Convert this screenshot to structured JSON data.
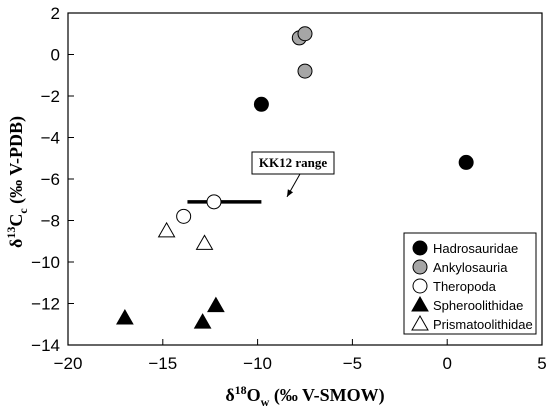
{
  "chart_data": {
    "type": "scatter",
    "xlabel": {
      "prefix": "δ",
      "sup": "18",
      "main": "O",
      "sub": "w",
      "suffix": " (‰ V-SMOW)"
    },
    "ylabel": {
      "prefix": "δ",
      "sup": "13",
      "main": "C",
      "sub": "c",
      "suffix": " (‰ V-PDB)"
    },
    "xlim": [
      -20,
      5
    ],
    "ylim": [
      -14,
      2
    ],
    "xticks": [
      -20,
      -15,
      -10,
      -5,
      0,
      5
    ],
    "yticks": [
      2,
      0,
      -2,
      -4,
      -6,
      -8,
      -10,
      -12,
      -14
    ],
    "xtick_labels": [
      "−20",
      "−15",
      "−10",
      "−5",
      "0",
      "5"
    ],
    "ytick_labels": [
      "2",
      "0",
      "−2",
      "−4",
      "−6",
      "−8",
      "−10",
      "−12",
      "−14"
    ],
    "grid": false,
    "legend_position": "bottom-right",
    "series": [
      {
        "name": "Hadrosauridae",
        "marker": "circle",
        "fill": "#000000",
        "points": [
          {
            "x": -9.8,
            "y": -2.4
          },
          {
            "x": 1.0,
            "y": -5.2
          }
        ]
      },
      {
        "name": "Ankylosauria",
        "marker": "circle",
        "fill": "#a6a6a6",
        "points": [
          {
            "x": -7.8,
            "y": 0.8
          },
          {
            "x": -7.5,
            "y": 1.0
          },
          {
            "x": -7.5,
            "y": -0.8
          }
        ]
      },
      {
        "name": "Theropoda",
        "marker": "circle",
        "fill": "#ffffff",
        "points": [
          {
            "x": -13.9,
            "y": -7.8
          },
          {
            "x": -12.3,
            "y": -7.1
          }
        ]
      },
      {
        "name": "Spheroolithidae",
        "marker": "triangle",
        "fill": "#000000",
        "points": [
          {
            "x": -17.0,
            "y": -12.7
          },
          {
            "x": -12.9,
            "y": -12.9
          },
          {
            "x": -12.2,
            "y": -12.1
          }
        ]
      },
      {
        "name": "Prismatoolithidae",
        "marker": "triangle",
        "fill": "#ffffff",
        "points": [
          {
            "x": -14.8,
            "y": -8.5
          },
          {
            "x": -12.8,
            "y": -9.1
          }
        ]
      }
    ],
    "range_bar": {
      "label": "KK12 range",
      "x": [
        -13.7,
        -9.8
      ],
      "y": -7.1
    }
  }
}
